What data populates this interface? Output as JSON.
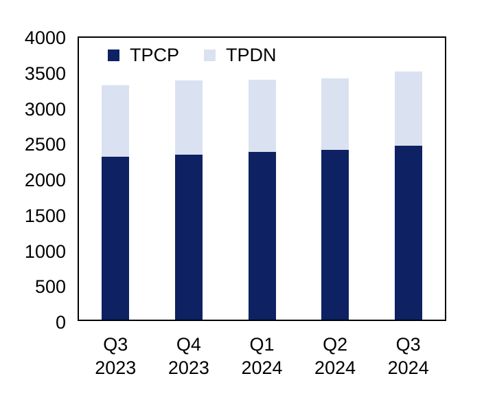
{
  "chart_data": {
    "type": "bar",
    "stacked": true,
    "categories": [
      [
        "Q3",
        "2023"
      ],
      [
        "Q4",
        "2023"
      ],
      [
        "Q1",
        "2024"
      ],
      [
        "Q2",
        "2024"
      ],
      [
        "Q3",
        "2024"
      ]
    ],
    "series": [
      {
        "name": "TPCP",
        "color": "#0D2163",
        "values": [
          2310,
          2340,
          2380,
          2410,
          2470
        ]
      },
      {
        "name": "TPDN",
        "color": "#DAE2F1",
        "values": [
          1020,
          1060,
          1030,
          1010,
          1050
        ]
      }
    ],
    "totals": [
      3330,
      3400,
      3410,
      3420,
      3520
    ],
    "ylim": [
      0,
      4000
    ],
    "ytick_step": 500,
    "yticks": [
      4000,
      3500,
      3000,
      2500,
      2000,
      1500,
      1000,
      500,
      0
    ],
    "grid": false,
    "legend_position": "top-inside",
    "frame_color": "#000000",
    "text_color": "#000000",
    "background_color": "#ffffff"
  }
}
